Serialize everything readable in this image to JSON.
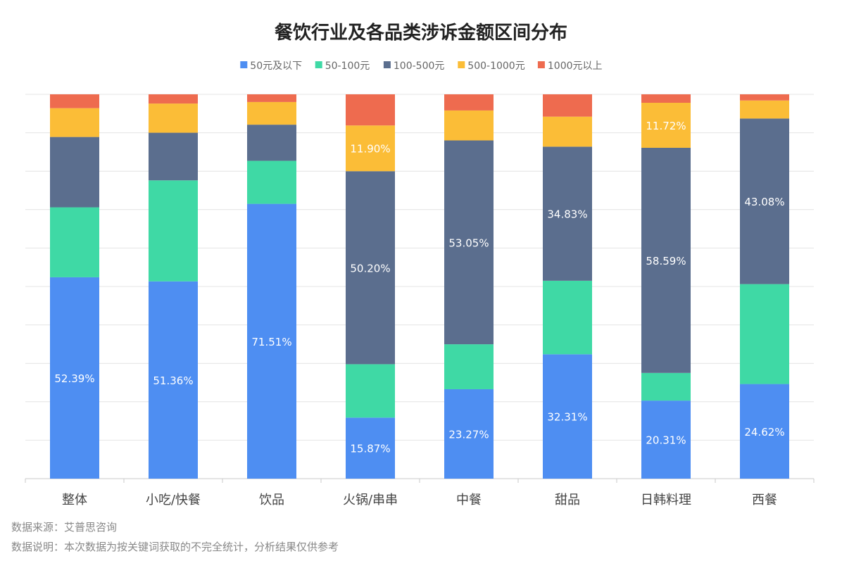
{
  "chart_data": {
    "type": "bar",
    "stacked": true,
    "normalized": true,
    "title": "餐饮行业及各品类涉诉金额区间分布",
    "categories": [
      "整体",
      "小吃/快餐",
      "饮品",
      "火锅/串串",
      "中餐",
      "甜品",
      "日韩料理",
      "西餐"
    ],
    "series": [
      {
        "name": "50元及以下",
        "color": "#4e8ef2",
        "values": [
          52.39,
          51.36,
          71.51,
          15.87,
          23.27,
          32.31,
          20.31,
          24.62
        ],
        "labels": [
          "52.39%",
          "51.36%",
          "71.51%",
          "15.87%",
          "23.27%",
          "32.31%",
          "20.31%",
          "24.62%"
        ]
      },
      {
        "name": "50-100元",
        "color": "#3fd9a5",
        "values": [
          18.2,
          26.3,
          11.2,
          13.9,
          11.7,
          19.1,
          7.2,
          26.0
        ],
        "labels": [
          "",
          "",
          "",
          "",
          "",
          "",
          "",
          ""
        ]
      },
      {
        "name": "100-500元",
        "color": "#5b6e8e",
        "values": [
          18.3,
          12.4,
          9.4,
          50.2,
          53.05,
          34.83,
          58.59,
          43.08
        ],
        "labels": [
          "",
          "",
          "",
          "50.20%",
          "53.05%",
          "34.83%",
          "58.59%",
          "43.08%"
        ]
      },
      {
        "name": "500-1000元",
        "color": "#fbbd37",
        "values": [
          7.5,
          7.6,
          5.9,
          11.9,
          7.8,
          7.8,
          11.72,
          4.7
        ],
        "labels": [
          "",
          "",
          "",
          "11.90%",
          "",
          "",
          "11.72%",
          ""
        ]
      },
      {
        "name": "1000元以上",
        "color": "#ee6b4f",
        "values": [
          3.6,
          2.4,
          2.0,
          8.1,
          4.2,
          5.8,
          2.2,
          1.6
        ],
        "labels": [
          "",
          "",
          "",
          "",
          "",
          "",
          "",
          ""
        ]
      }
    ],
    "ylim": [
      0,
      100
    ],
    "grid": true,
    "legend": "top-center"
  },
  "footer": {
    "source": "数据来源：艾普思咨询",
    "note": "数据说明：本次数据为按关键词获取的不完全统计，分析结果仅供参考"
  }
}
